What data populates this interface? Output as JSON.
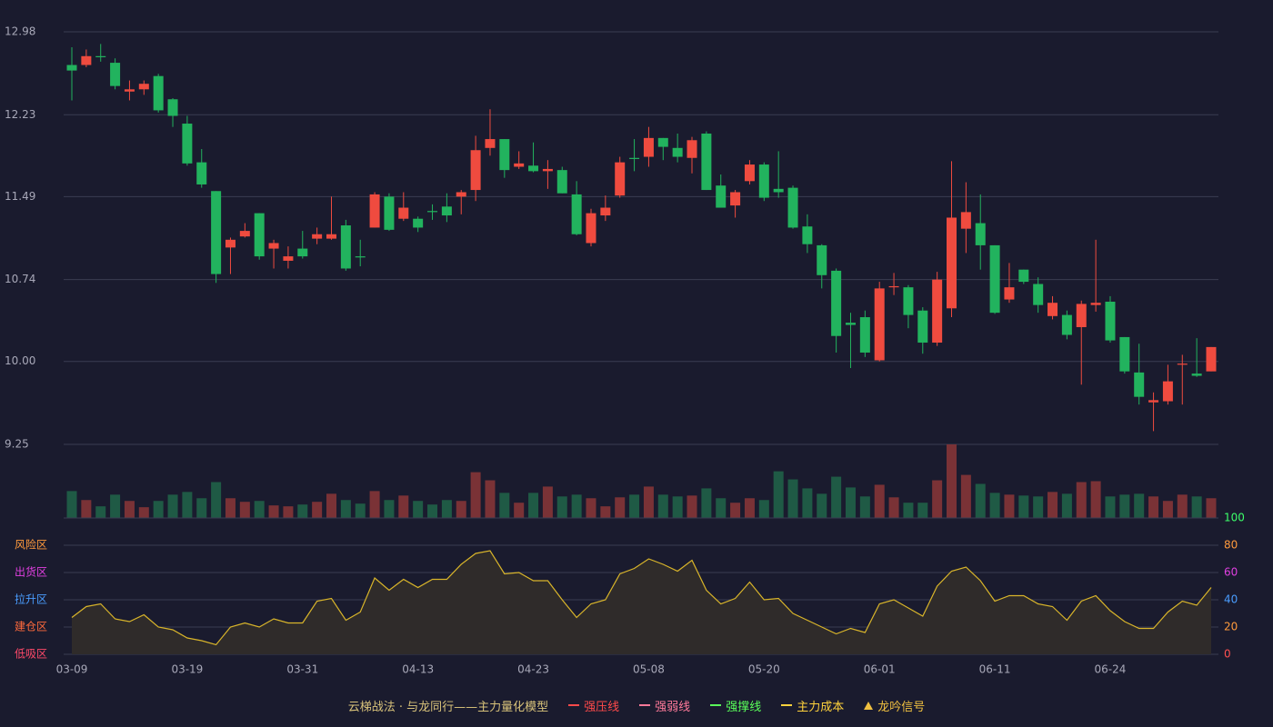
{
  "chart_data": [
    {
      "type": "candlestick",
      "categories": [
        "03-09",
        null,
        null,
        null,
        null,
        null,
        null,
        null,
        "03-19",
        null,
        null,
        null,
        null,
        null,
        null,
        null,
        "03-31",
        null,
        null,
        null,
        null,
        null,
        null,
        null,
        "04-13",
        null,
        null,
        null,
        null,
        null,
        null,
        null,
        "04-23",
        null,
        null,
        null,
        null,
        null,
        null,
        null,
        "05-08",
        null,
        null,
        null,
        null,
        null,
        null,
        null,
        "05-20",
        null,
        null,
        null,
        null,
        null,
        null,
        null,
        "06-01",
        null,
        null,
        null,
        null,
        null,
        null,
        null,
        "06-11",
        null,
        null,
        null,
        null,
        null,
        null,
        null,
        "06-24",
        null,
        null,
        null,
        null,
        null,
        null,
        null
      ],
      "open": [
        12.68,
        12.68,
        12.76,
        12.7,
        12.44,
        12.46,
        12.58,
        12.37,
        12.15,
        11.8,
        11.54,
        11.03,
        11.13,
        11.34,
        11.02,
        10.91,
        11.02,
        11.11,
        11.11,
        11.23,
        10.95,
        11.21,
        11.49,
        11.29,
        11.29,
        11.36,
        11.4,
        11.49,
        11.55,
        11.93,
        12.01,
        11.76,
        11.77,
        11.72,
        11.73,
        11.51,
        11.07,
        11.32,
        11.5,
        11.84,
        11.85,
        12.02,
        11.93,
        11.84,
        12.06,
        11.59,
        11.41,
        11.63,
        11.78,
        11.56,
        11.57,
        11.22,
        11.05,
        10.82,
        10.35,
        10.4,
        10.01,
        10.67,
        10.67,
        10.46,
        10.17,
        10.48,
        11.2,
        11.25,
        11.05,
        10.56,
        10.83,
        10.7,
        10.41,
        10.42,
        10.31,
        10.51,
        10.54,
        10.22,
        9.9,
        9.63,
        9.64,
        9.97,
        9.89,
        9.91
      ],
      "high": [
        12.84,
        12.82,
        12.87,
        12.74,
        12.54,
        12.54,
        12.6,
        12.38,
        12.22,
        11.92,
        11.54,
        11.12,
        11.25,
        11.34,
        11.1,
        11.04,
        11.18,
        11.21,
        11.49,
        11.28,
        11.1,
        11.53,
        11.52,
        11.53,
        11.31,
        11.42,
        11.52,
        11.55,
        12.04,
        12.28,
        12.01,
        11.9,
        11.98,
        11.82,
        11.76,
        11.63,
        11.38,
        11.5,
        11.85,
        12.01,
        12.12,
        12.02,
        12.06,
        12.03,
        12.08,
        11.69,
        11.55,
        11.82,
        11.8,
        11.9,
        11.59,
        11.33,
        11.06,
        10.84,
        10.44,
        10.46,
        10.72,
        10.8,
        10.69,
        10.49,
        10.81,
        11.81,
        11.62,
        11.51,
        11.05,
        10.89,
        10.83,
        10.76,
        10.59,
        10.46,
        10.55,
        11.1,
        10.59,
        10.22,
        10.16,
        9.72,
        9.97,
        10.06,
        10.21,
        10.13
      ],
      "low": [
        12.36,
        12.66,
        12.71,
        12.46,
        12.36,
        12.41,
        12.25,
        12.12,
        11.77,
        11.57,
        10.71,
        10.79,
        11.12,
        10.92,
        10.84,
        10.84,
        10.93,
        11.06,
        11.1,
        10.82,
        10.86,
        11.21,
        11.18,
        11.27,
        11.17,
        11.28,
        11.26,
        11.33,
        11.45,
        11.86,
        11.66,
        11.74,
        11.71,
        11.56,
        11.52,
        11.14,
        11.04,
        11.27,
        11.48,
        11.72,
        11.76,
        11.82,
        11.8,
        11.7,
        11.55,
        11.39,
        11.3,
        11.6,
        11.45,
        11.48,
        11.2,
        10.98,
        10.66,
        10.08,
        9.94,
        10.04,
        10.0,
        10.6,
        10.3,
        10.07,
        10.14,
        10.4,
        10.98,
        10.83,
        10.43,
        10.53,
        10.7,
        10.44,
        10.38,
        10.2,
        9.79,
        10.45,
        10.17,
        9.89,
        9.61,
        9.37,
        9.61,
        9.61,
        9.86,
        9.91
      ],
      "close": [
        12.63,
        12.76,
        12.75,
        12.49,
        12.46,
        12.51,
        12.27,
        12.22,
        11.79,
        11.6,
        10.79,
        11.1,
        11.18,
        10.95,
        11.07,
        10.95,
        10.95,
        11.15,
        11.15,
        10.84,
        10.94,
        11.51,
        11.19,
        11.39,
        11.21,
        11.35,
        11.32,
        11.53,
        11.91,
        12.01,
        11.73,
        11.79,
        11.72,
        11.74,
        11.52,
        11.15,
        11.34,
        11.39,
        11.8,
        11.83,
        12.02,
        11.94,
        11.85,
        12.0,
        11.55,
        11.39,
        11.53,
        11.78,
        11.48,
        11.53,
        11.21,
        11.06,
        10.78,
        10.23,
        10.33,
        10.08,
        10.66,
        10.68,
        10.42,
        10.17,
        10.74,
        11.3,
        11.35,
        11.05,
        10.44,
        10.67,
        10.72,
        10.51,
        10.53,
        10.24,
        10.52,
        10.53,
        10.19,
        9.91,
        9.68,
        9.65,
        9.82,
        9.98,
        9.87,
        10.13
      ],
      "ylim": [
        9.25,
        12.98
      ],
      "yticks": [
        9.25,
        {
          "value": 10,
          "label": "10.00"
        },
        10.74,
        11.49,
        12.23,
        12.98
      ],
      "up_color": "#ef4b3f",
      "down_color": "#22b35e",
      "grid": true
    },
    {
      "type": "bar",
      "values": [
        30,
        20,
        13,
        26,
        19,
        12,
        19,
        26,
        29,
        22,
        40,
        22,
        18,
        19,
        14,
        13,
        15,
        18,
        27,
        20,
        16,
        30,
        20,
        25,
        19,
        15,
        20,
        19,
        51,
        42,
        28,
        17,
        28,
        35,
        24,
        26,
        22,
        13,
        23,
        26,
        35,
        26,
        24,
        25,
        33,
        22,
        17,
        22,
        20,
        52,
        43,
        33,
        27,
        46,
        34,
        24,
        37,
        23,
        17,
        17,
        42,
        82,
        48,
        38,
        28,
        26,
        25,
        24,
        29,
        27,
        40,
        41,
        24,
        26,
        27,
        24,
        19,
        26,
        24,
        22
      ],
      "ylim": [
        0,
        82
      ],
      "up_color": "#7a3236",
      "down_color": "#1f5a45"
    },
    {
      "type": "area",
      "values": [
        27,
        35,
        37,
        26,
        24,
        29,
        20,
        18,
        12,
        10,
        7,
        20,
        23,
        20,
        26,
        23,
        23,
        39,
        41,
        25,
        31,
        56,
        47,
        55,
        49,
        55,
        55,
        66,
        74,
        76,
        59,
        60,
        54,
        54,
        40,
        27,
        37,
        40,
        59,
        63,
        70,
        66,
        61,
        69,
        47,
        37,
        41,
        53,
        40,
        41,
        30,
        25,
        20,
        15,
        19,
        16,
        37,
        40,
        34,
        28,
        50,
        61,
        64,
        54,
        39,
        43,
        43,
        37,
        35,
        25,
        39,
        43,
        32,
        24,
        19,
        19,
        31,
        39,
        36,
        49
      ],
      "ylim": [
        0,
        100
      ],
      "yticks": [
        0,
        20,
        40,
        60,
        80,
        100
      ],
      "ytick_colors": [
        "#ff5050",
        "#ff9a3c",
        "#4a9dff",
        "#e040e0",
        "#ff9a3c",
        "#3cff6a"
      ],
      "zones": [
        {
          "value": 80,
          "label": "风险区",
          "color": "#ff9a3c"
        },
        {
          "value": 60,
          "label": "出货区",
          "color": "#e040e0"
        },
        {
          "value": 40,
          "label": "拉升区",
          "color": "#4a9dff"
        },
        {
          "value": 20,
          "label": "建仓区",
          "color": "#ff6a3c"
        },
        {
          "value": 0,
          "label": "低吸区",
          "color": "#ff4a6a"
        }
      ],
      "color": "#d9b52a",
      "fill": "#2f2b2a",
      "grid": true
    }
  ],
  "legend": {
    "title": "云梯战法 · 与龙同行——主力量化模型",
    "items": [
      {
        "name": "强压线",
        "color": "#ff4a4a",
        "style": "solid"
      },
      {
        "name": "强弱线",
        "color": "#ff7a9a",
        "style": "dashed"
      },
      {
        "name": "强撑线",
        "color": "#5aff5a",
        "style": "solid"
      },
      {
        "name": "主力成本",
        "color": "#ffd23c",
        "style": "dashed"
      },
      {
        "name": "龙吟信号",
        "color": "#f0c040",
        "style": "triangle"
      }
    ]
  }
}
